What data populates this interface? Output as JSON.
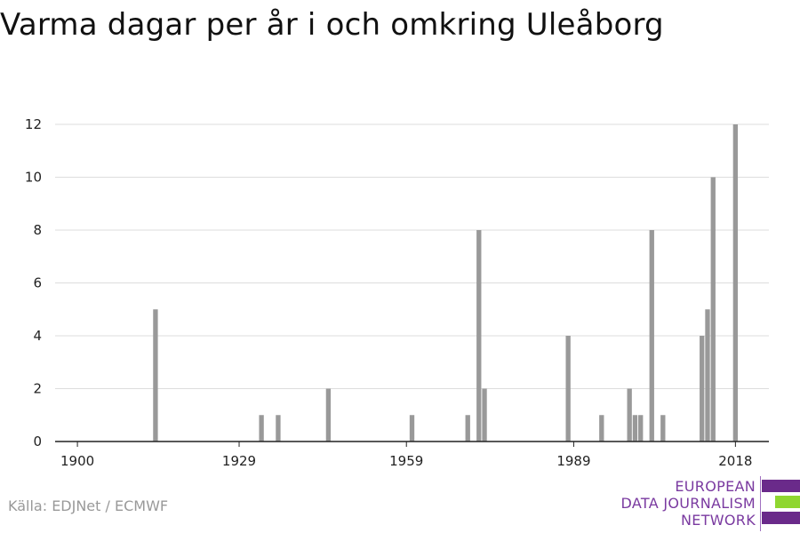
{
  "title": "Varma dagar per år i och omkring Uleåborg",
  "source": "Källa: EDJNet / ECMWF",
  "logo": {
    "lines": [
      "EUROPEAN",
      "DATA JOURNALISM",
      "NETWORK"
    ],
    "colors": [
      "#6a2a8a",
      "#8fd630",
      "#6a2a8a"
    ]
  },
  "chart_data": {
    "type": "bar",
    "title": "Varma dagar per år i och omkring Uleåborg",
    "xlabel": "",
    "ylabel": "",
    "xlim": [
      1896,
      2024
    ],
    "ylim": [
      0,
      12
    ],
    "yticks": [
      0,
      2,
      4,
      6,
      8,
      10,
      12
    ],
    "xticks": [
      1900,
      1929,
      1959,
      1989,
      2018
    ],
    "grid": true,
    "bar_color": "#999999",
    "categories": [
      1914,
      1933,
      1936,
      1945,
      1960,
      1970,
      1972,
      1973,
      1988,
      1994,
      1999,
      2000,
      2001,
      2003,
      2005,
      2012,
      2013,
      2014,
      2018
    ],
    "values": [
      5,
      1,
      1,
      2,
      1,
      1,
      8,
      2,
      4,
      1,
      2,
      1,
      1,
      8,
      1,
      4,
      5,
      10,
      12
    ]
  }
}
